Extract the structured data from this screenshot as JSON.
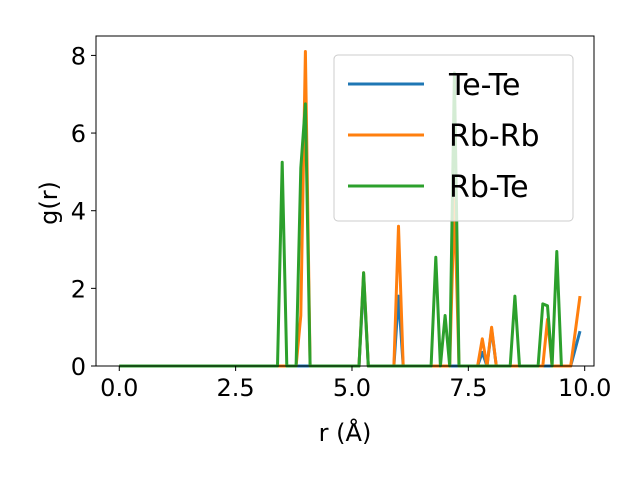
{
  "chart_data": {
    "type": "line",
    "xlabel": "r (Å)",
    "ylabel": "g(r)",
    "xlim": [
      -0.5,
      10.2
    ],
    "ylim": [
      0,
      8.5
    ],
    "xticks": [
      0.0,
      2.5,
      5.0,
      7.5,
      10.0
    ],
    "xtick_labels": [
      "0.0",
      "2.5",
      "5.0",
      "7.5",
      "10.0"
    ],
    "yticks": [
      0,
      2,
      4,
      6,
      8
    ],
    "ytick_labels": [
      "0",
      "2",
      "4",
      "6",
      "8"
    ],
    "grid": false,
    "legend_position": "top-right",
    "series": [
      {
        "name": "Te-Te",
        "color": "#1f77b4",
        "x": [
          0.0,
          5.15,
          5.25,
          5.35,
          5.9,
          6.0,
          6.1,
          7.7,
          7.8,
          7.9,
          8.0,
          8.1,
          9.7,
          9.9
        ],
        "y": [
          0,
          0,
          2.2,
          0,
          0,
          1.8,
          0,
          0,
          0.35,
          0,
          0.95,
          0,
          0,
          0.9
        ]
      },
      {
        "name": "Rb-Rb",
        "color": "#ff7f0e",
        "x": [
          0.0,
          3.8,
          3.9,
          4.0,
          4.1,
          5.15,
          5.25,
          5.35,
          5.9,
          6.0,
          6.1,
          7.1,
          7.2,
          7.3,
          7.7,
          7.8,
          7.9,
          8.0,
          8.1,
          9.1,
          9.2,
          9.3,
          9.7,
          9.9
        ],
        "y": [
          0,
          0,
          1.3,
          8.1,
          0,
          0,
          2.4,
          0,
          0,
          3.6,
          0,
          0,
          4.3,
          0,
          0,
          0.7,
          0,
          1.0,
          0,
          0,
          1.2,
          0,
          0,
          1.8
        ]
      },
      {
        "name": "Rb-Te",
        "color": "#2ca02c",
        "x": [
          0.0,
          3.4,
          3.5,
          3.6,
          3.8,
          3.9,
          4.0,
          4.1,
          5.15,
          5.25,
          5.35,
          6.7,
          6.8,
          6.9,
          7.0,
          7.1,
          7.2,
          7.3,
          8.4,
          8.5,
          8.6,
          9.0,
          9.1,
          9.2,
          9.3,
          9.4,
          9.5
        ],
        "y": [
          0,
          0,
          5.25,
          0,
          0,
          5.1,
          6.75,
          0,
          0,
          2.4,
          0,
          0,
          2.8,
          0,
          1.3,
          0,
          7.55,
          0,
          0,
          1.8,
          0,
          0,
          1.6,
          1.55,
          0,
          2.95,
          0
        ]
      }
    ]
  }
}
